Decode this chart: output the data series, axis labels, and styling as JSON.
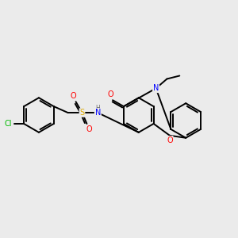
{
  "bg_color": "#ebebeb",
  "bond_color": "#000000",
  "bond_width": 1.4,
  "atom_colors": {
    "Cl": "#00bb00",
    "S": "#ddaa00",
    "O": "#ff0000",
    "N": "#0000ff",
    "H": "#666666",
    "C": "#000000"
  },
  "fs": 7.0,
  "fs_small": 5.5
}
